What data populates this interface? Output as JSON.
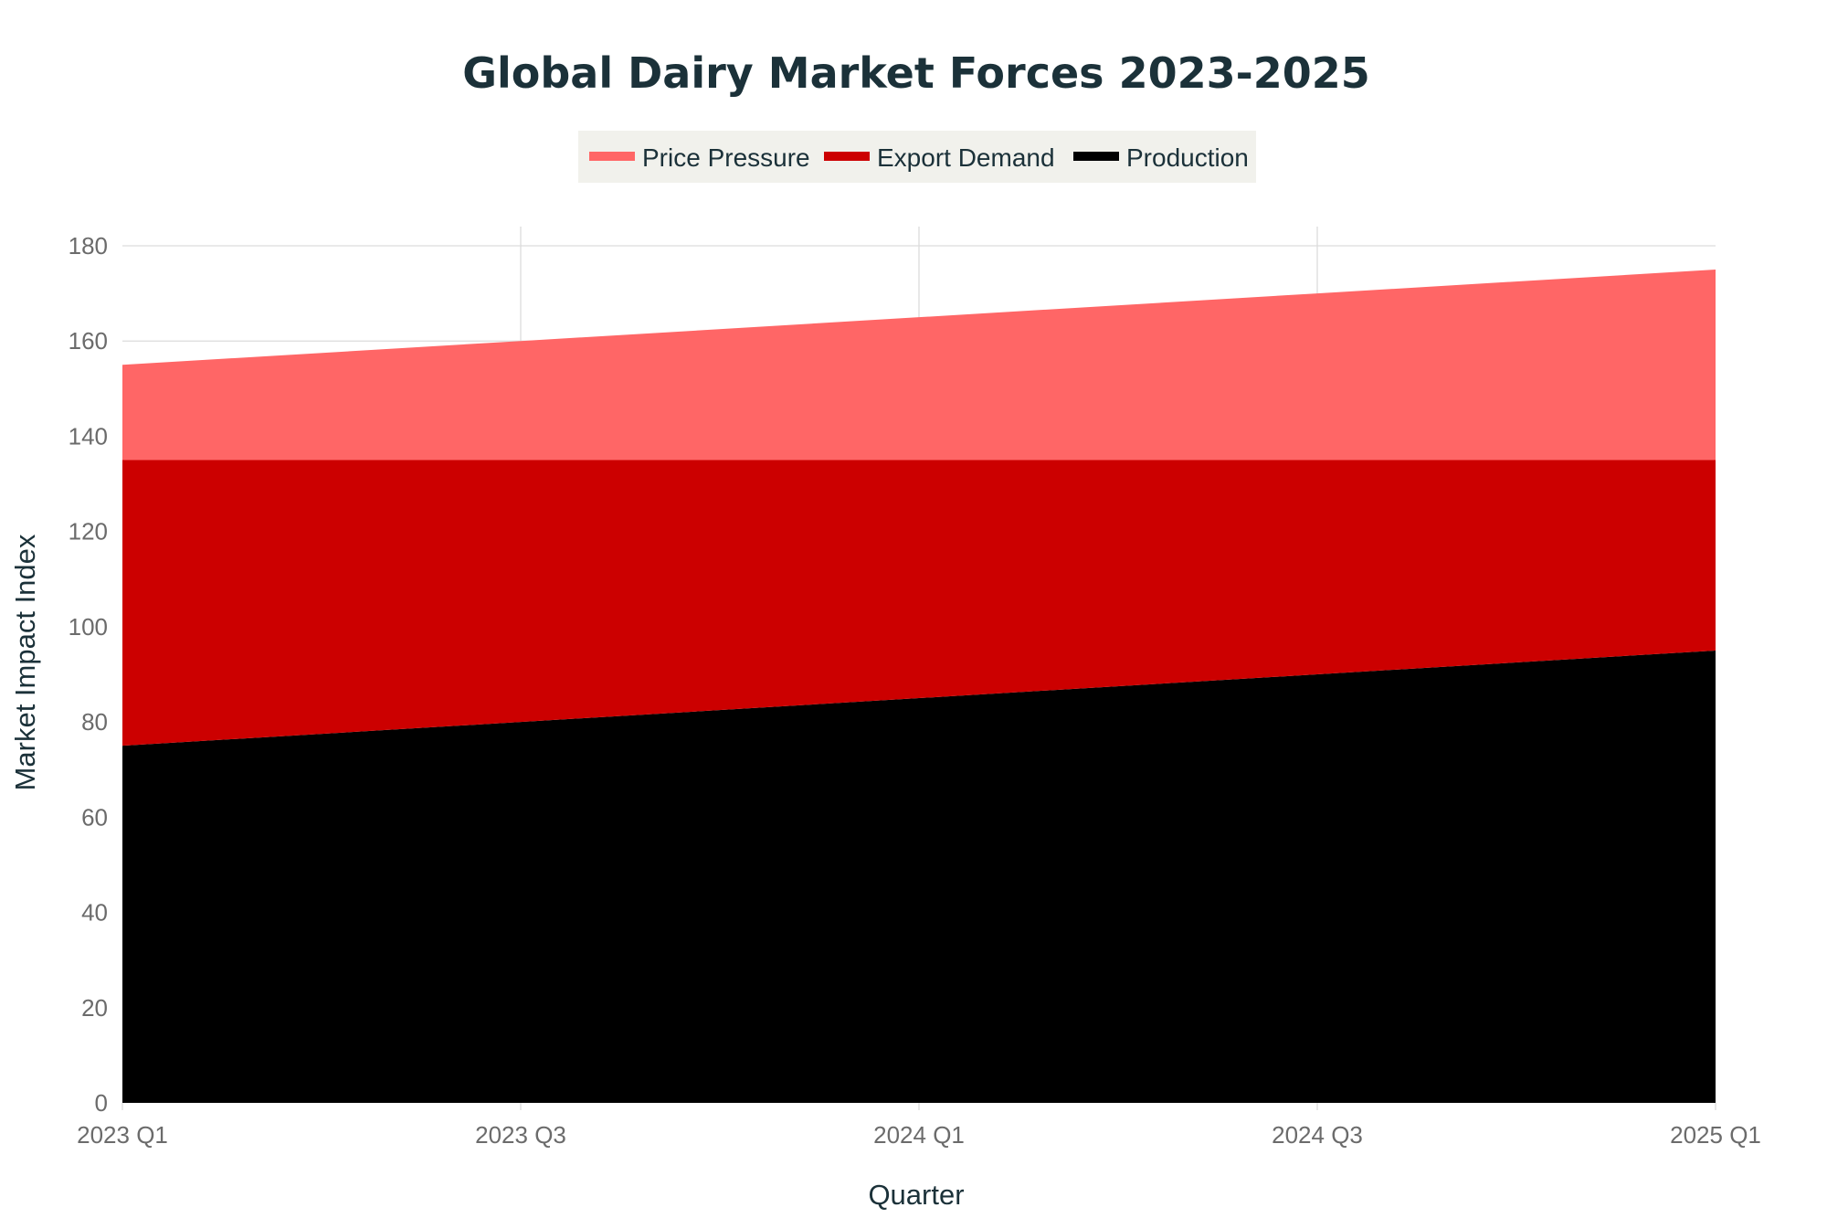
{
  "chart_data": {
    "type": "area",
    "stacked": true,
    "title": "Global Dairy Market Forces 2023-2025",
    "xlabel": "Quarter",
    "ylabel": "Market Impact Index",
    "categories": [
      "2023 Q1",
      "2023 Q3",
      "2024 Q1",
      "2024 Q3",
      "2025 Q1"
    ],
    "ylim": [
      0,
      180
    ],
    "yticks": [
      0,
      20,
      40,
      60,
      80,
      100,
      120,
      140,
      160,
      180
    ],
    "grid": true,
    "legend_position": "top-center",
    "series": [
      {
        "name": "Production",
        "color": "#000000",
        "values": [
          75,
          80,
          85,
          90,
          95
        ]
      },
      {
        "name": "Export Demand",
        "color": "#cc0000",
        "values": [
          60,
          55,
          50,
          45,
          40
        ]
      },
      {
        "name": "Price Pressure",
        "color": "#ff6666",
        "values": [
          20,
          25,
          30,
          35,
          40
        ]
      }
    ],
    "legend_order": [
      "Price Pressure",
      "Export Demand",
      "Production"
    ]
  }
}
